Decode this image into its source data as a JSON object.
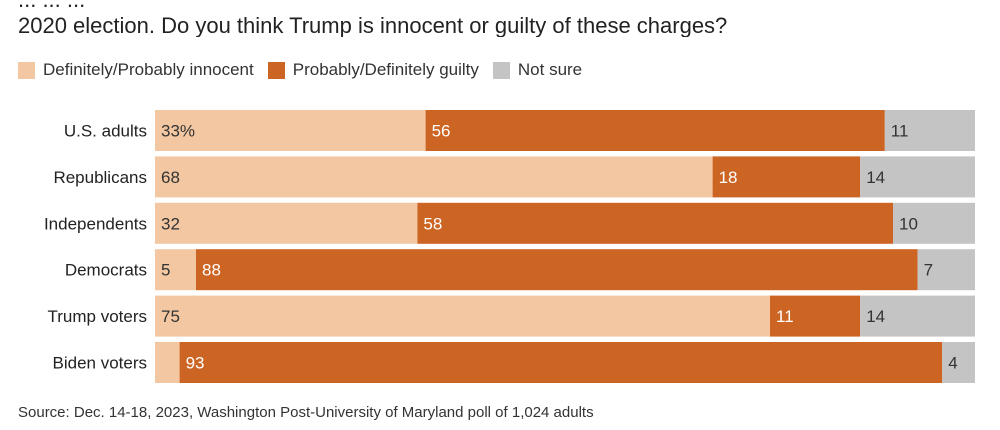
{
  "title_lines": [
    "... ... ...",
    "2020 election. Do you think Trump is innocent or guilty of these charges?"
  ],
  "legend": [
    {
      "label": "Definitely/Probably innocent",
      "color": "#f2c7a1"
    },
    {
      "label": "Probably/Definitely guilty",
      "color": "#cc6423"
    },
    {
      "label": "Not sure",
      "color": "#c4c4c4"
    }
  ],
  "source": "Source: Dec. 14-18, 2023, Washington Post-University of Maryland poll of 1,024 adults",
  "chart_data": {
    "type": "bar",
    "orientation": "horizontal",
    "stacked": true,
    "categories": [
      "U.S. adults",
      "Republicans",
      "Independents",
      "Democrats",
      "Trump voters",
      "Biden voters"
    ],
    "series": [
      {
        "name": "Definitely/Probably innocent",
        "color": "#f2c7a1",
        "values": [
          33,
          68,
          32,
          5,
          75,
          3
        ],
        "labels": [
          "33%",
          "68",
          "32",
          "5",
          "75",
          ""
        ]
      },
      {
        "name": "Probably/Definitely guilty",
        "color": "#cc6423",
        "values": [
          56,
          18,
          58,
          88,
          11,
          93
        ],
        "labels": [
          "56",
          "18",
          "58",
          "88",
          "11",
          "93"
        ]
      },
      {
        "name": "Not sure",
        "color": "#c4c4c4",
        "values": [
          11,
          14,
          10,
          7,
          14,
          4
        ],
        "labels": [
          "11",
          "14",
          "10",
          "7",
          "14",
          "4"
        ]
      }
    ],
    "xlim": [
      0,
      100
    ],
    "legend_position": "top-left",
    "grid": false
  }
}
